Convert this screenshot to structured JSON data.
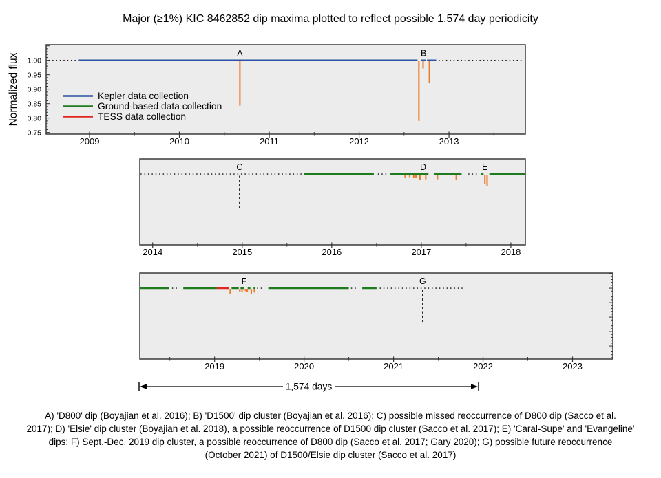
{
  "title": "Major (≥1%) KIC 8462852 dip maxima plotted to reflect possible 1,574 day periodicity",
  "y_axis_label": "Normalized flux",
  "legend": {
    "items": [
      {
        "label": "Kepler data collection",
        "color": "#2B51A3"
      },
      {
        "label": "Ground-based data collection",
        "color": "#1E7B1E"
      },
      {
        "label": "TESS data collection",
        "color": "#E3241D"
      }
    ]
  },
  "colors": {
    "kepler": "#2B51A3",
    "ground": "#1E7B1E",
    "tess": "#E3241D",
    "dip": "#ED7C2A",
    "gap_dotted": "#1A1A1A",
    "marker_dashed": "#222222",
    "panel_bg": "#ECECEC",
    "panel_border": "#3A3A3A",
    "tick": "#333333"
  },
  "chart_data": {
    "type": "line",
    "y_ticks": [
      {
        "value": 1.0,
        "label": "1.00"
      },
      {
        "value": 0.95,
        "label": "0.95"
      },
      {
        "value": 0.9,
        "label": "0.90"
      },
      {
        "value": 0.85,
        "label": "0.85"
      },
      {
        "value": 0.8,
        "label": "0.80"
      },
      {
        "value": 0.75,
        "label": "0.75"
      }
    ],
    "panels": [
      {
        "x_range": [
          2008.517,
          2013.85
        ],
        "y_range": [
          0.7445,
          1.054
        ],
        "x_ticks": [
          {
            "value": 2009,
            "label": "2009"
          },
          {
            "value": 2010,
            "label": "2010"
          },
          {
            "value": 2011,
            "label": "2011"
          },
          {
            "value": 2012,
            "label": "2012"
          },
          {
            "value": 2013,
            "label": "2013"
          }
        ],
        "segments": [
          {
            "kind": "gap",
            "x1": 2008.55,
            "x2": 2008.84
          },
          {
            "kind": "kepler",
            "x1": 2008.88,
            "x2": 2012.65
          },
          {
            "kind": "kepler",
            "x1": 2012.69,
            "x2": 2012.745
          },
          {
            "kind": "kepler",
            "x1": 2012.755,
            "x2": 2012.858
          },
          {
            "kind": "gap",
            "x1": 2012.89,
            "x2": 2013.84
          }
        ],
        "dips": [
          {
            "x": 2010.673,
            "flux": 0.843
          },
          {
            "x": 2012.665,
            "flux": 0.79
          },
          {
            "x": 2012.712,
            "flux": 0.972
          },
          {
            "x": 2012.782,
            "flux": 0.922
          }
        ],
        "markers": [],
        "labels": [
          {
            "text": "A",
            "x": 2010.673
          },
          {
            "text": "B",
            "x": 2012.717
          }
        ]
      },
      {
        "x_range": [
          2013.856,
          2018.162
        ],
        "y_range": [
          0.755,
          1.0525
        ],
        "x_ticks": [
          {
            "value": 2014,
            "label": "2014"
          },
          {
            "value": 2015,
            "label": "2015"
          },
          {
            "value": 2016,
            "label": "2016"
          },
          {
            "value": 2017,
            "label": "2017"
          },
          {
            "value": 2018,
            "label": "2018"
          }
        ],
        "segments": [
          {
            "kind": "gap",
            "x1": 2013.87,
            "x2": 2015.68
          },
          {
            "kind": "ground",
            "x1": 2015.69,
            "x2": 2016.47
          },
          {
            "kind": "gap",
            "x1": 2016.52,
            "x2": 2016.61
          },
          {
            "kind": "ground",
            "x1": 2016.65,
            "x2": 2017.08
          },
          {
            "kind": "ground",
            "x1": 2017.145,
            "x2": 2017.45
          },
          {
            "kind": "gap",
            "x1": 2017.53,
            "x2": 2017.63
          },
          {
            "kind": "ground",
            "x1": 2017.665,
            "x2": 2017.695
          },
          {
            "kind": "ground",
            "x1": 2017.76,
            "x2": 2018.155
          }
        ],
        "dips": [
          {
            "x": 2016.82,
            "flux": 0.986
          },
          {
            "x": 2016.87,
            "flux": 0.987
          },
          {
            "x": 2016.915,
            "flux": 0.986
          },
          {
            "x": 2016.94,
            "flux": 0.986
          },
          {
            "x": 2016.985,
            "flux": 0.98
          },
          {
            "x": 2017.05,
            "flux": 0.982
          },
          {
            "x": 2017.18,
            "flux": 0.982
          },
          {
            "x": 2017.39,
            "flux": 0.981
          },
          {
            "x": 2017.71,
            "flux": 0.967
          },
          {
            "x": 2017.735,
            "flux": 0.958
          }
        ],
        "markers": [
          {
            "x": 2014.97,
            "flux": 0.876
          }
        ],
        "labels": [
          {
            "text": "C",
            "x": 2014.97
          },
          {
            "text": "D",
            "x": 2017.02
          },
          {
            "text": "E",
            "x": 2017.71
          }
        ]
      },
      {
        "x_range": [
          2018.164,
          2023.45
        ],
        "y_range": [
          0.755,
          1.0525
        ],
        "x_ticks": [
          {
            "value": 2019,
            "label": "2019"
          },
          {
            "value": 2020,
            "label": "2020"
          },
          {
            "value": 2021,
            "label": "2021"
          },
          {
            "value": 2022,
            "label": "2022"
          },
          {
            "value": 2023,
            "label": "2023"
          }
        ],
        "segments": [
          {
            "kind": "ground",
            "x1": 2018.17,
            "x2": 2018.49
          },
          {
            "kind": "gap",
            "x1": 2018.53,
            "x2": 2018.6
          },
          {
            "kind": "ground",
            "x1": 2018.65,
            "x2": 2019.025
          },
          {
            "kind": "tess",
            "x1": 2019.025,
            "x2": 2019.16
          },
          {
            "kind": "ground",
            "x1": 2019.19,
            "x2": 2019.27
          },
          {
            "kind": "ground",
            "x1": 2019.29,
            "x2": 2019.33
          },
          {
            "kind": "ground",
            "x1": 2019.37,
            "x2": 2019.4
          },
          {
            "kind": "ground",
            "x1": 2019.435,
            "x2": 2019.455
          },
          {
            "kind": "gap",
            "x1": 2019.48,
            "x2": 2019.56
          },
          {
            "kind": "ground",
            "x1": 2019.6,
            "x2": 2020.5
          },
          {
            "kind": "gap",
            "x1": 2020.53,
            "x2": 2020.59
          },
          {
            "kind": "ground",
            "x1": 2020.65,
            "x2": 2020.81
          },
          {
            "kind": "gap",
            "x1": 2020.85,
            "x2": 2021.78
          }
        ],
        "dips": [
          {
            "x": 2019.175,
            "flux": 0.98
          },
          {
            "x": 2019.282,
            "flux": 0.988
          },
          {
            "x": 2019.307,
            "flux": 0.988
          },
          {
            "x": 2019.345,
            "flux": 0.99
          },
          {
            "x": 2019.365,
            "flux": 0.988
          },
          {
            "x": 2019.41,
            "flux": 0.979
          },
          {
            "x": 2019.445,
            "flux": 0.985
          }
        ],
        "markers": [
          {
            "x": 2021.325,
            "flux": 0.876
          }
        ],
        "labels": [
          {
            "text": "F",
            "x": 2019.33
          },
          {
            "text": "G",
            "x": 2021.325
          }
        ]
      }
    ]
  },
  "annotation_arrow": {
    "label": "1,574 days"
  },
  "caption": {
    "lines": [
      "A) 'D800' dip (Boyajian et al. 2016); B) 'D1500' dip cluster (Boyajian et al. 2016); C) possible missed reoccurrence of D800 dip (Sacco et al.",
      "2017); D) 'Elsie' dip cluster (Boyajian et al. 2018), a possible reoccurrence of D1500 dip cluster (Sacco et al. 2017); E) 'Caral-Supe' and 'Evangeline'",
      "dips; F) Sept.-Dec. 2019 dip cluster, a possible reoccurrence of D800 dip (Sacco et al. 2017; Gary 2020); G) possible future reoccurrence",
      "(October 2021) of D1500/Elsie dip cluster (Sacco et al. 2017)"
    ]
  }
}
